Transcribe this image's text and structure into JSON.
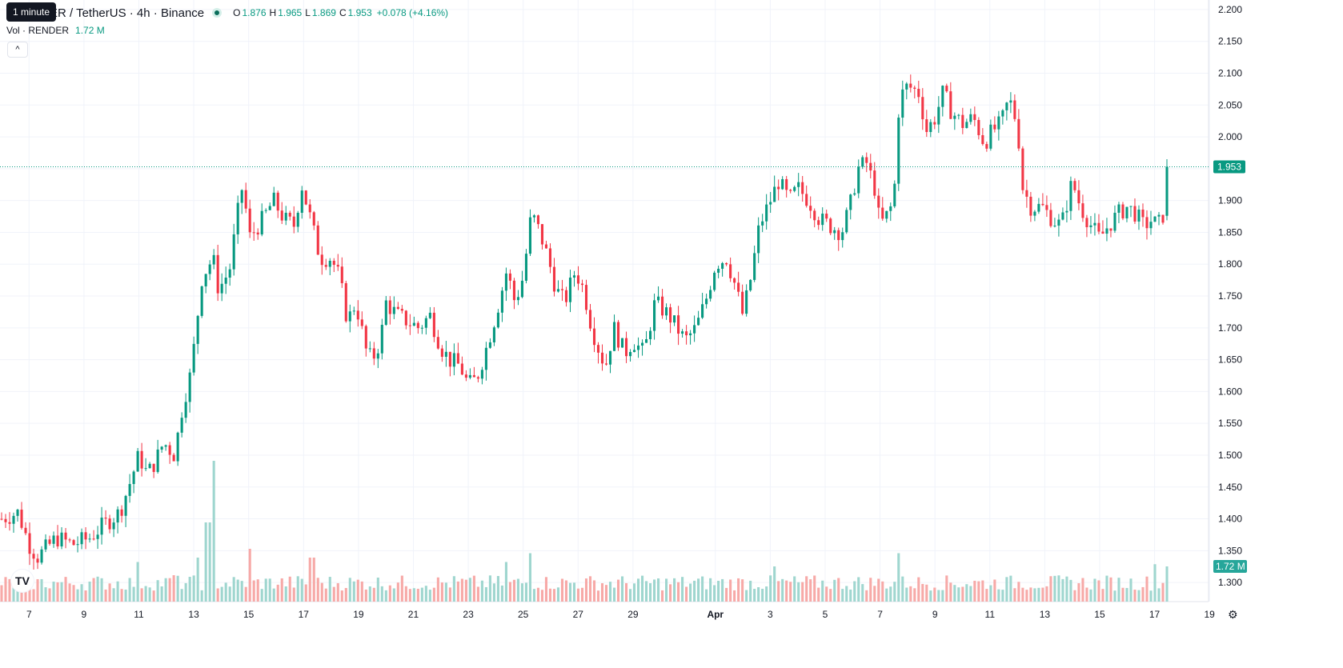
{
  "header": {
    "symbol_text": "ER / TetherUS · 4h · Binance",
    "ohlc": {
      "o_label": "O",
      "o": "1.876",
      "h_label": "H",
      "h": "1.965",
      "l_label": "L",
      "l": "1.869",
      "c_label": "C",
      "c": "1.953",
      "change": "+0.078 (+4.16%)"
    },
    "tooltip": "1 minute",
    "collapse_symbol": "^"
  },
  "volume_legend": {
    "label": "Vol · RENDER",
    "value": "1.72 M"
  },
  "logo_text": "TV",
  "settings_icon": "gear-icon",
  "chart_data": {
    "type": "candlestick",
    "title": "",
    "price_axis_ticks": [
      "2.200",
      "2.150",
      "2.100",
      "2.050",
      "2.000",
      "1.950",
      "1.900",
      "1.850",
      "1.800",
      "1.750",
      "1.700",
      "1.650",
      "1.600",
      "1.550",
      "1.500",
      "1.450",
      "1.400",
      "1.350",
      "1.300"
    ],
    "ylim": [
      1.27,
      2.215
    ],
    "time_axis_labels": [
      {
        "label": "7",
        "day": 7
      },
      {
        "label": "9",
        "day": 9
      },
      {
        "label": "11",
        "day": 11
      },
      {
        "label": "13",
        "day": 13
      },
      {
        "label": "15",
        "day": 15
      },
      {
        "label": "17",
        "day": 17
      },
      {
        "label": "19",
        "day": 19
      },
      {
        "label": "21",
        "day": 21
      },
      {
        "label": "23",
        "day": 23
      },
      {
        "label": "25",
        "day": 25
      },
      {
        "label": "27",
        "day": 27
      },
      {
        "label": "29",
        "day": 29
      },
      {
        "label": "Apr",
        "day": 32,
        "bold": true
      },
      {
        "label": "3",
        "day": 34
      },
      {
        "label": "5",
        "day": 36
      },
      {
        "label": "7",
        "day": 38
      },
      {
        "label": "9",
        "day": 40
      },
      {
        "label": "11",
        "day": 42
      },
      {
        "label": "13",
        "day": 44
      },
      {
        "label": "15",
        "day": 46
      },
      {
        "label": "17",
        "day": 48
      },
      {
        "label": "19",
        "day": 50
      }
    ],
    "last_price": "1.953",
    "last_volume": "1.72 M",
    "colors": {
      "up": "#089981",
      "down": "#f23645",
      "vol_up": "#9fd6cf",
      "vol_down": "#f7a9a7",
      "grid": "#f0f3fa"
    },
    "anchors": [
      {
        "d": 6.0,
        "p": 1.4
      },
      {
        "d": 6.6,
        "p": 1.41
      },
      {
        "d": 7.0,
        "p": 1.36
      },
      {
        "d": 7.3,
        "p": 1.34
      },
      {
        "d": 8.0,
        "p": 1.37
      },
      {
        "d": 8.6,
        "p": 1.36
      },
      {
        "d": 9.2,
        "p": 1.37
      },
      {
        "d": 9.7,
        "p": 1.39
      },
      {
        "d": 10.3,
        "p": 1.41
      },
      {
        "d": 10.7,
        "p": 1.46
      },
      {
        "d": 11.0,
        "p": 1.5
      },
      {
        "d": 11.3,
        "p": 1.47
      },
      {
        "d": 11.6,
        "p": 1.49
      },
      {
        "d": 11.9,
        "p": 1.52
      },
      {
        "d": 12.3,
        "p": 1.5
      },
      {
        "d": 12.6,
        "p": 1.58
      },
      {
        "d": 12.9,
        "p": 1.63
      },
      {
        "d": 13.3,
        "p": 1.78
      },
      {
        "d": 13.7,
        "p": 1.81
      },
      {
        "d": 13.9,
        "p": 1.76
      },
      {
        "d": 14.3,
        "p": 1.79
      },
      {
        "d": 14.6,
        "p": 1.88
      },
      {
        "d": 14.8,
        "p": 1.93
      },
      {
        "d": 15.0,
        "p": 1.84
      },
      {
        "d": 15.5,
        "p": 1.87
      },
      {
        "d": 15.9,
        "p": 1.9
      },
      {
        "d": 16.3,
        "p": 1.87
      },
      {
        "d": 16.7,
        "p": 1.86
      },
      {
        "d": 16.9,
        "p": 1.93
      },
      {
        "d": 17.2,
        "p": 1.88
      },
      {
        "d": 17.6,
        "p": 1.81
      },
      {
        "d": 18.0,
        "p": 1.81
      },
      {
        "d": 18.3,
        "p": 1.78
      },
      {
        "d": 18.6,
        "p": 1.71
      },
      {
        "d": 18.9,
        "p": 1.74
      },
      {
        "d": 19.3,
        "p": 1.66
      },
      {
        "d": 19.5,
        "p": 1.65
      },
      {
        "d": 19.8,
        "p": 1.68
      },
      {
        "d": 20.0,
        "p": 1.74
      },
      {
        "d": 20.4,
        "p": 1.72
      },
      {
        "d": 20.8,
        "p": 1.71
      },
      {
        "d": 21.2,
        "p": 1.7
      },
      {
        "d": 21.6,
        "p": 1.72
      },
      {
        "d": 22.0,
        "p": 1.67
      },
      {
        "d": 22.3,
        "p": 1.65
      },
      {
        "d": 22.7,
        "p": 1.64
      },
      {
        "d": 23.0,
        "p": 1.61
      },
      {
        "d": 23.3,
        "p": 1.62
      },
      {
        "d": 23.6,
        "p": 1.66
      },
      {
        "d": 24.0,
        "p": 1.72
      },
      {
        "d": 24.4,
        "p": 1.79
      },
      {
        "d": 24.7,
        "p": 1.74
      },
      {
        "d": 25.0,
        "p": 1.78
      },
      {
        "d": 25.3,
        "p": 1.88
      },
      {
        "d": 25.6,
        "p": 1.85
      },
      {
        "d": 25.9,
        "p": 1.81
      },
      {
        "d": 26.2,
        "p": 1.76
      },
      {
        "d": 26.5,
        "p": 1.74
      },
      {
        "d": 26.9,
        "p": 1.79
      },
      {
        "d": 27.2,
        "p": 1.76
      },
      {
        "d": 27.5,
        "p": 1.7
      },
      {
        "d": 27.8,
        "p": 1.66
      },
      {
        "d": 28.0,
        "p": 1.64
      },
      {
        "d": 28.3,
        "p": 1.7
      },
      {
        "d": 28.7,
        "p": 1.66
      },
      {
        "d": 29.0,
        "p": 1.68
      },
      {
        "d": 29.4,
        "p": 1.66
      },
      {
        "d": 29.8,
        "p": 1.74
      },
      {
        "d": 30.3,
        "p": 1.72
      },
      {
        "d": 30.6,
        "p": 1.7
      },
      {
        "d": 30.9,
        "p": 1.68
      },
      {
        "d": 31.3,
        "p": 1.7
      },
      {
        "d": 31.7,
        "p": 1.75
      },
      {
        "d": 32.0,
        "p": 1.8
      },
      {
        "d": 32.4,
        "p": 1.81
      },
      {
        "d": 32.7,
        "p": 1.77
      },
      {
        "d": 33.0,
        "p": 1.72
      },
      {
        "d": 33.3,
        "p": 1.78
      },
      {
        "d": 33.6,
        "p": 1.86
      },
      {
        "d": 33.9,
        "p": 1.89
      },
      {
        "d": 34.3,
        "p": 1.93
      },
      {
        "d": 34.7,
        "p": 1.9
      },
      {
        "d": 35.0,
        "p": 1.92
      },
      {
        "d": 35.4,
        "p": 1.9
      },
      {
        "d": 35.8,
        "p": 1.87
      },
      {
        "d": 36.2,
        "p": 1.86
      },
      {
        "d": 36.6,
        "p": 1.85
      },
      {
        "d": 36.9,
        "p": 1.89
      },
      {
        "d": 37.2,
        "p": 1.95
      },
      {
        "d": 37.5,
        "p": 1.96
      },
      {
        "d": 37.8,
        "p": 1.92
      },
      {
        "d": 38.0,
        "p": 1.86
      },
      {
        "d": 38.3,
        "p": 1.88
      },
      {
        "d": 38.5,
        "p": 1.9
      },
      {
        "d": 38.7,
        "p": 2.06
      },
      {
        "d": 39.0,
        "p": 2.08
      },
      {
        "d": 39.4,
        "p": 2.07
      },
      {
        "d": 39.7,
        "p": 2.01
      },
      {
        "d": 40.0,
        "p": 2.03
      },
      {
        "d": 40.3,
        "p": 2.07
      },
      {
        "d": 40.6,
        "p": 2.04
      },
      {
        "d": 41.0,
        "p": 2.02
      },
      {
        "d": 41.4,
        "p": 2.03
      },
      {
        "d": 41.8,
        "p": 1.99
      },
      {
        "d": 42.1,
        "p": 2.01
      },
      {
        "d": 42.4,
        "p": 2.02
      },
      {
        "d": 42.7,
        "p": 2.06
      },
      {
        "d": 43.0,
        "p": 2.02
      },
      {
        "d": 43.2,
        "p": 1.92
      },
      {
        "d": 43.5,
        "p": 1.89
      },
      {
        "d": 43.9,
        "p": 1.89
      },
      {
        "d": 44.3,
        "p": 1.87
      },
      {
        "d": 44.6,
        "p": 1.86
      },
      {
        "d": 45.0,
        "p": 1.93
      },
      {
        "d": 45.3,
        "p": 1.89
      },
      {
        "d": 45.7,
        "p": 1.86
      },
      {
        "d": 46.0,
        "p": 1.84
      },
      {
        "d": 46.3,
        "p": 1.86
      },
      {
        "d": 46.7,
        "p": 1.88
      },
      {
        "d": 47.0,
        "p": 1.89
      },
      {
        "d": 47.3,
        "p": 1.88
      },
      {
        "d": 47.6,
        "p": 1.86
      },
      {
        "d": 47.9,
        "p": 1.87
      },
      {
        "d": 48.1,
        "p": 1.86
      },
      {
        "d": 48.3,
        "p": 1.875
      },
      {
        "d": 48.45,
        "p": 1.953
      }
    ],
    "volume_spikes": [
      {
        "d": 11.0,
        "v": 0.9
      },
      {
        "d": 12.3,
        "v": 0.6
      },
      {
        "d": 13.2,
        "v": 1.0
      },
      {
        "d": 13.5,
        "v": 1.8
      },
      {
        "d": 13.7,
        "v": 3.2
      },
      {
        "d": 15.0,
        "v": 1.2
      },
      {
        "d": 17.3,
        "v": 1.0
      },
      {
        "d": 25.3,
        "v": 1.1
      },
      {
        "d": 24.4,
        "v": 0.9
      },
      {
        "d": 38.7,
        "v": 1.1
      },
      {
        "d": 34.2,
        "v": 0.8
      },
      {
        "d": 48.0,
        "v": 0.85
      },
      {
        "d": 48.45,
        "v": 0.8
      }
    ]
  }
}
